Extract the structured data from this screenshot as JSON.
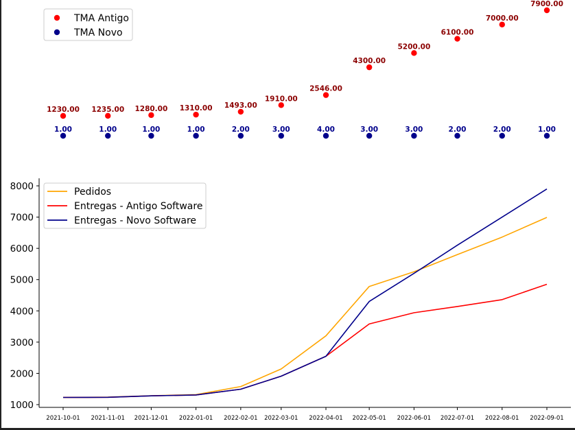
{
  "chart_data": [
    {
      "type": "scatter",
      "x": [
        "2021-10-01",
        "2021-11-01",
        "2021-12-01",
        "2022-01-01",
        "2022-02-01",
        "2022-03-01",
        "2022-04-01",
        "2022-05-01",
        "2022-06-01",
        "2022-07-01",
        "2022-08-01",
        "2022-09-01"
      ],
      "series": [
        {
          "name": "TMA Antigo",
          "color": "#ff0000",
          "label_color": "#8b0000",
          "values": [
            1230,
            1235,
            1280,
            1310,
            1493,
            1910,
            2546,
            4300,
            5200,
            6100,
            7000,
            7900
          ],
          "labels": [
            "1230.00",
            "1235.00",
            "1280.00",
            "1310.00",
            "1493.00",
            "1910.00",
            "2546.00",
            "4300.00",
            "5200.00",
            "6100.00",
            "7000.00",
            "7900.00"
          ]
        },
        {
          "name": "TMA Novo",
          "color": "#00008b",
          "label_color": "#00008b",
          "values": [
            1,
            1,
            1,
            1,
            2,
            3,
            4,
            3,
            3,
            2,
            2,
            1
          ],
          "labels": [
            "1.00",
            "1.00",
            "1.00",
            "1.00",
            "2.00",
            "3.00",
            "4.00",
            "3.00",
            "3.00",
            "2.00",
            "2.00",
            "1.00"
          ]
        }
      ],
      "legend": "top-left",
      "axes_visible": false
    },
    {
      "type": "line",
      "x": [
        "2021-10-01",
        "2021-11-01",
        "2021-12-01",
        "2022-01-01",
        "2022-02-01",
        "2022-03-01",
        "2022-04-01",
        "2022-05-01",
        "2022-06-01",
        "2022-07-01",
        "2022-08-01",
        "2022-09-01"
      ],
      "series": [
        {
          "name": "Pedidos",
          "color": "#ffa500",
          "values": [
            1230,
            1240,
            1285,
            1320,
            1580,
            2140,
            3200,
            4780,
            5250,
            5800,
            6360,
            6990
          ]
        },
        {
          "name": "Entregas - Antigo Software",
          "color": "#ff0000",
          "values": [
            1230,
            1235,
            1280,
            1310,
            1493,
            1910,
            2546,
            3580,
            3940,
            4140,
            4360,
            4850
          ]
        },
        {
          "name": "Entregas - Novo Software",
          "color": "#00008b",
          "values": [
            1230,
            1235,
            1280,
            1310,
            1493,
            1910,
            2546,
            4300,
            5200,
            6100,
            7000,
            7900
          ]
        }
      ],
      "yticks": [
        "1000",
        "2000",
        "3000",
        "4000",
        "5000",
        "6000",
        "7000",
        "8000"
      ],
      "ylim": [
        1000,
        8000
      ],
      "legend": "top-left",
      "grid": false
    }
  ]
}
